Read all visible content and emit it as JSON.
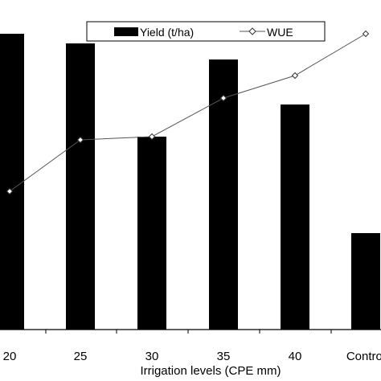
{
  "chart_data": {
    "type": "bar",
    "categories": [
      "20",
      "25",
      "30",
      "35",
      "40",
      "Control"
    ],
    "xlabel": "Irrigation levels (CPE mm)",
    "ylabel": "",
    "title": "",
    "legend": {
      "placement": "top-right"
    },
    "series": [
      {
        "name": "Yield (t/ha)",
        "kind": "bar",
        "color": "#000000",
        "values": [
          0.92,
          0.89,
          0.6,
          0.84,
          0.7,
          0.3
        ]
      },
      {
        "name": "WUE",
        "kind": "line",
        "marker": "diamond",
        "color": "#555555",
        "values": [
          0.43,
          0.59,
          0.6,
          0.72,
          0.79,
          0.92
        ]
      }
    ],
    "ylim": [
      0,
      1
    ],
    "grid": false
  }
}
